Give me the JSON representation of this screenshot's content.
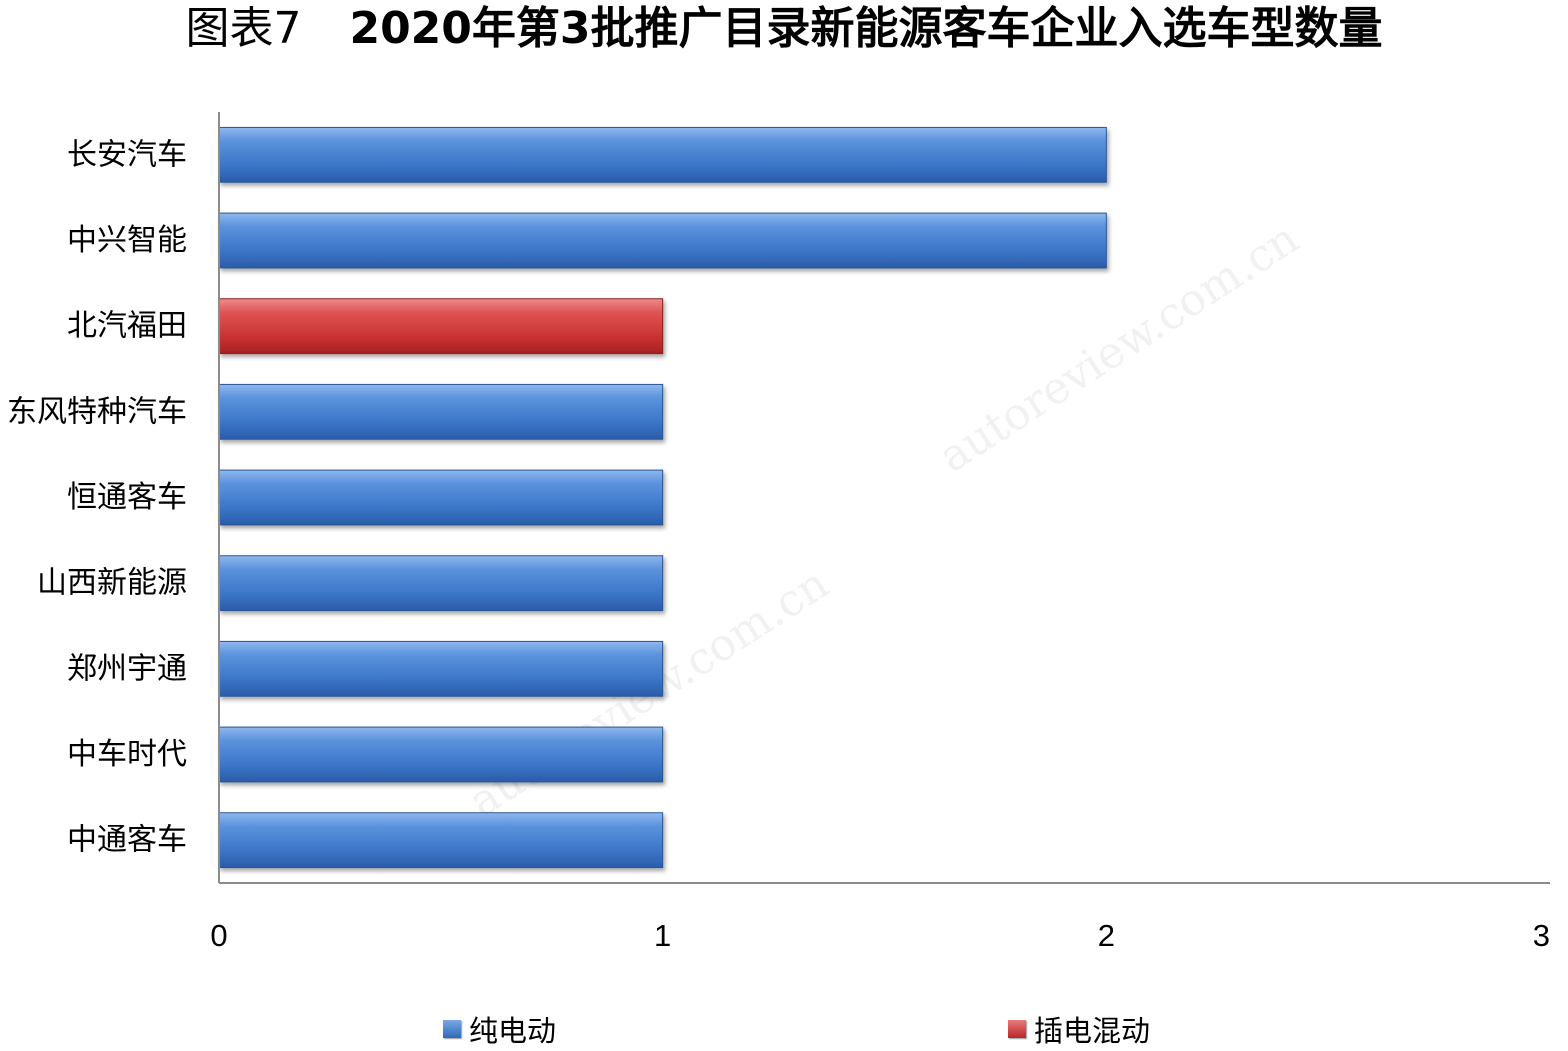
{
  "title": {
    "prefix": "图表7",
    "main": "2020年第3批推广目录新能源客车企业入选车型数量"
  },
  "watermark": "autoreview.com.cn",
  "colors": {
    "pure_electric": "#3f7fd0",
    "plugin_hybrid": "#d43535"
  },
  "chart_data": {
    "type": "bar",
    "orientation": "horizontal",
    "categories": [
      "长安汽车",
      "中兴智能",
      "北汽福田",
      "东风特种汽车",
      "恒通客车",
      "山西新能源",
      "郑州宇通",
      "中车时代",
      "中通客车"
    ],
    "series": [
      {
        "name": "纯电动",
        "values": [
          2,
          2,
          0,
          1,
          1,
          1,
          1,
          1,
          1
        ]
      },
      {
        "name": "插电混动",
        "values": [
          0,
          0,
          1,
          0,
          0,
          0,
          0,
          0,
          0
        ]
      }
    ],
    "xlim": [
      0,
      3
    ],
    "xticks": [
      "0",
      "1",
      "2",
      "3"
    ],
    "grid": false,
    "legend_position": "bottom"
  }
}
